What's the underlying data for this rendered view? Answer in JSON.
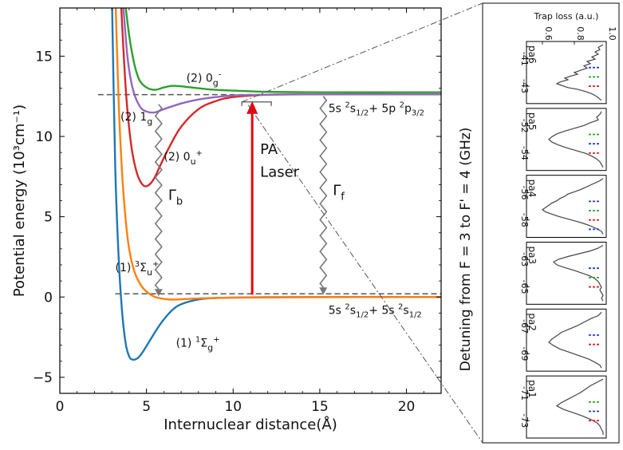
{
  "chart_data": [
    {
      "type": "line",
      "title": "",
      "xlabel": "Internuclear distance(Å)",
      "ylabel": "Potential energy (10³cm⁻¹)",
      "xlim": [
        0,
        22
      ],
      "ylim": [
        -6,
        18
      ],
      "xticks": [
        0,
        5,
        10,
        15,
        20
      ],
      "yticks": [
        -5,
        0,
        5,
        10,
        15
      ],
      "series": [
        {
          "name": "(1) ¹Σg⁺",
          "color": "#1f77b4",
          "label_at": [
            6.7,
            -3.1
          ],
          "x": [
            3.0,
            3.2,
            3.4,
            3.6,
            3.8,
            4.0,
            4.2,
            4.5,
            4.8,
            5.2,
            5.6,
            6.0,
            6.5,
            7.0,
            8.0,
            9.0,
            10.0,
            12.0,
            15.0,
            22.0
          ],
          "y": [
            19.0,
            8.0,
            2.3,
            -1.0,
            -2.9,
            -3.7,
            -3.9,
            -3.8,
            -3.4,
            -2.7,
            -2.0,
            -1.4,
            -0.8,
            -0.45,
            -0.15,
            -0.06,
            -0.03,
            -0.01,
            0.0,
            0.0
          ]
        },
        {
          "name": "(1) ³Σu⁺",
          "color": "#ff7f0e",
          "label_at": [
            3.2,
            1.6
          ],
          "x": [
            3.2,
            3.4,
            3.6,
            3.8,
            4.0,
            4.3,
            4.7,
            5.1,
            5.5,
            6.0,
            6.5,
            7.0,
            8.0,
            10.0,
            14.0,
            22.0
          ],
          "y": [
            19.0,
            12.0,
            7.6,
            4.8,
            3.0,
            1.6,
            0.7,
            0.25,
            0.0,
            -0.12,
            -0.16,
            -0.14,
            -0.09,
            -0.04,
            -0.01,
            0.0
          ]
        },
        {
          "name": "(2) 0u⁺",
          "color": "#d62728",
          "label_at": [
            6.0,
            8.5
          ],
          "x": [
            3.5,
            3.8,
            4.1,
            4.4,
            4.7,
            5.0,
            5.4,
            5.8,
            6.3,
            7.0,
            8.0,
            9.0,
            10.0,
            12.0,
            14.0,
            17.0,
            22.0
          ],
          "y": [
            19.0,
            13.0,
            9.6,
            7.9,
            7.1,
            6.9,
            7.3,
            8.2,
            9.3,
            10.6,
            11.7,
            12.2,
            12.45,
            12.6,
            12.62,
            12.62,
            12.62
          ]
        },
        {
          "name": "(2) 1g",
          "color": "#9467bd",
          "label_at": [
            3.5,
            11.0
          ],
          "x": [
            3.6,
            3.9,
            4.2,
            4.6,
            5.0,
            5.5,
            6.0,
            7.0,
            8.0,
            9.0,
            10.0,
            12.0,
            15.0,
            22.0
          ],
          "y": [
            19.0,
            15.0,
            13.0,
            11.9,
            11.55,
            11.5,
            11.7,
            12.05,
            12.3,
            12.45,
            12.55,
            12.6,
            12.62,
            12.62
          ]
        },
        {
          "name": "(2) 0g⁻",
          "color": "#2ca02c",
          "label_at": [
            7.3,
            13.4
          ],
          "x": [
            3.7,
            4.0,
            4.3,
            4.6,
            5.0,
            5.5,
            6.0,
            6.5,
            7.0,
            8.0,
            9.0,
            10.0,
            12.0,
            15.0,
            22.0
          ],
          "y": [
            19.0,
            16.3,
            14.5,
            13.5,
            13.05,
            12.9,
            13.05,
            13.15,
            13.12,
            13.0,
            12.9,
            12.85,
            12.78,
            12.75,
            12.75
          ]
        }
      ],
      "dashed_levels": [
        {
          "y": 12.6,
          "x_from": 2.2,
          "x_to": 22
        },
        {
          "y": 0.2,
          "x_from": 3.2,
          "x_to": 22
        }
      ],
      "pa_laser": {
        "label_line1": "PA",
        "label_line2": "Laser",
        "x": 11.1,
        "y_from": 0.15,
        "y_to": 12.2,
        "color": "#e8000b"
      },
      "decays": [
        {
          "label": "Γb",
          "label_main": "Γ",
          "label_sub": "b",
          "x": 5.7,
          "y_from": 12.0,
          "y_to": 0.1
        },
        {
          "label": "Γf",
          "label_main": "Γ",
          "label_sub": "f",
          "x": 15.2,
          "y_from": 12.5,
          "y_to": 0.2
        }
      ],
      "asymptotes": [
        {
          "text": "5s ²s1/2+ 5p ²p3/2",
          "y": 12.6
        },
        {
          "text": "5s ²s1/2+ 5s ²s1/2",
          "y": 0.0
        }
      ],
      "zoom_bracket": {
        "x_from": 10.5,
        "x_to": 12.2,
        "y": 12.15
      }
    },
    {
      "type": "line",
      "title": "",
      "xlabel": "Trap loss (a.u.)",
      "ylabel": "Detuning from F = 3 to F' = 4 (GHz)",
      "xlim": [
        0.5,
        1.0
      ],
      "xticks": [
        0.6,
        0.8,
        1.0
      ],
      "xtick_labels": [
        "0.6",
        "0.8",
        "1.0"
      ],
      "panels": [
        {
          "label": "pa6",
          "ticks": [
            "-41",
            "-43"
          ],
          "markers": [
            "blue",
            "green",
            "red"
          ],
          "trace": [
            [
              0.98,
              0.0
            ],
            [
              0.95,
              0.05
            ],
            [
              0.96,
              0.09
            ],
            [
              0.93,
              0.13
            ],
            [
              0.95,
              0.17
            ],
            [
              0.91,
              0.22
            ],
            [
              0.93,
              0.26
            ],
            [
              0.88,
              0.3
            ],
            [
              0.9,
              0.34
            ],
            [
              0.86,
              0.38
            ],
            [
              0.88,
              0.42
            ],
            [
              0.84,
              0.46
            ],
            [
              0.8,
              0.5
            ],
            [
              0.82,
              0.53
            ],
            [
              0.77,
              0.57
            ],
            [
              0.74,
              0.6
            ],
            [
              0.76,
              0.63
            ],
            [
              0.71,
              0.67
            ],
            [
              0.69,
              0.7
            ],
            [
              0.72,
              0.73
            ],
            [
              0.76,
              0.77
            ],
            [
              0.82,
              0.8
            ],
            [
              0.87,
              0.84
            ],
            [
              0.91,
              0.88
            ],
            [
              0.94,
              0.93
            ],
            [
              0.97,
              1.0
            ]
          ]
        },
        {
          "label": "pa5",
          "ticks": [
            "-52",
            "-54"
          ],
          "markers": [
            "green",
            "blue",
            "red"
          ],
          "trace": [
            [
              0.97,
              0.0
            ],
            [
              0.96,
              0.05
            ],
            [
              0.94,
              0.1
            ],
            [
              0.95,
              0.15
            ],
            [
              0.9,
              0.2
            ],
            [
              0.86,
              0.25
            ],
            [
              0.8,
              0.3
            ],
            [
              0.74,
              0.35
            ],
            [
              0.69,
              0.4
            ],
            [
              0.66,
              0.45
            ],
            [
              0.64,
              0.5
            ],
            [
              0.66,
              0.55
            ],
            [
              0.7,
              0.6
            ],
            [
              0.75,
              0.65
            ],
            [
              0.81,
              0.7
            ],
            [
              0.87,
              0.75
            ],
            [
              0.91,
              0.8
            ],
            [
              0.94,
              0.85
            ],
            [
              0.96,
              0.9
            ],
            [
              0.97,
              0.95
            ],
            [
              0.98,
              1.0
            ]
          ]
        },
        {
          "label": "pa4",
          "ticks": [
            "-56",
            "-58"
          ],
          "markers": [
            "blue",
            "green",
            "red",
            "blue"
          ],
          "trace": [
            [
              0.98,
              0.0
            ],
            [
              0.96,
              0.04
            ],
            [
              0.93,
              0.08
            ],
            [
              0.9,
              0.12
            ],
            [
              0.87,
              0.16
            ],
            [
              0.84,
              0.2
            ],
            [
              0.8,
              0.24
            ],
            [
              0.76,
              0.28
            ],
            [
              0.74,
              0.32
            ],
            [
              0.71,
              0.36
            ],
            [
              0.69,
              0.4
            ],
            [
              0.66,
              0.44
            ],
            [
              0.64,
              0.48
            ],
            [
              0.62,
              0.52
            ],
            [
              0.6,
              0.56
            ],
            [
              0.62,
              0.6
            ],
            [
              0.66,
              0.64
            ],
            [
              0.7,
              0.68
            ],
            [
              0.75,
              0.72
            ],
            [
              0.8,
              0.76
            ],
            [
              0.85,
              0.8
            ],
            [
              0.9,
              0.85
            ],
            [
              0.94,
              0.9
            ],
            [
              0.97,
              0.95
            ],
            [
              0.98,
              1.0
            ]
          ]
        },
        {
          "label": "pa3",
          "ticks": [
            "-63",
            "-65"
          ],
          "markers": [
            "blue",
            "green",
            "red"
          ],
          "trace": [
            [
              0.98,
              0.0
            ],
            [
              0.95,
              0.05
            ],
            [
              0.9,
              0.1
            ],
            [
              0.83,
              0.15
            ],
            [
              0.76,
              0.2
            ],
            [
              0.7,
              0.25
            ],
            [
              0.67,
              0.3
            ],
            [
              0.69,
              0.35
            ],
            [
              0.74,
              0.4
            ],
            [
              0.8,
              0.45
            ],
            [
              0.85,
              0.5
            ],
            [
              0.9,
              0.55
            ],
            [
              0.93,
              0.6
            ],
            [
              0.95,
              0.65
            ],
            [
              0.96,
              0.7
            ],
            [
              0.97,
              0.75
            ],
            [
              0.96,
              0.8
            ],
            [
              0.97,
              0.85
            ],
            [
              0.98,
              0.9
            ],
            [
              0.97,
              0.95
            ],
            [
              0.98,
              1.0
            ]
          ]
        },
        {
          "label": "pa2",
          "ticks": [
            "-67",
            "-69"
          ],
          "markers": [
            "blue",
            "red"
          ],
          "trace": [
            [
              0.97,
              0.0
            ],
            [
              0.95,
              0.06
            ],
            [
              0.9,
              0.12
            ],
            [
              0.86,
              0.18
            ],
            [
              0.82,
              0.24
            ],
            [
              0.77,
              0.3
            ],
            [
              0.72,
              0.36
            ],
            [
              0.69,
              0.42
            ],
            [
              0.66,
              0.48
            ],
            [
              0.64,
              0.54
            ],
            [
              0.67,
              0.6
            ],
            [
              0.71,
              0.66
            ],
            [
              0.77,
              0.72
            ],
            [
              0.83,
              0.78
            ],
            [
              0.89,
              0.84
            ],
            [
              0.93,
              0.9
            ],
            [
              0.96,
              0.95
            ],
            [
              0.97,
              1.0
            ]
          ]
        },
        {
          "label": "pa1",
          "ticks": [
            "-71",
            "-73"
          ],
          "markers": [
            "green",
            "blue",
            "red"
          ],
          "trace": [
            [
              0.98,
              0.0
            ],
            [
              0.94,
              0.06
            ],
            [
              0.9,
              0.12
            ],
            [
              0.87,
              0.18
            ],
            [
              0.84,
              0.24
            ],
            [
              0.8,
              0.3
            ],
            [
              0.76,
              0.36
            ],
            [
              0.72,
              0.42
            ],
            [
              0.69,
              0.48
            ],
            [
              0.73,
              0.54
            ],
            [
              0.79,
              0.6
            ],
            [
              0.85,
              0.66
            ],
            [
              0.9,
              0.72
            ],
            [
              0.94,
              0.78
            ],
            [
              0.96,
              0.84
            ],
            [
              0.97,
              0.9
            ],
            [
              0.98,
              0.95
            ],
            [
              0.98,
              1.0
            ]
          ]
        }
      ]
    }
  ]
}
